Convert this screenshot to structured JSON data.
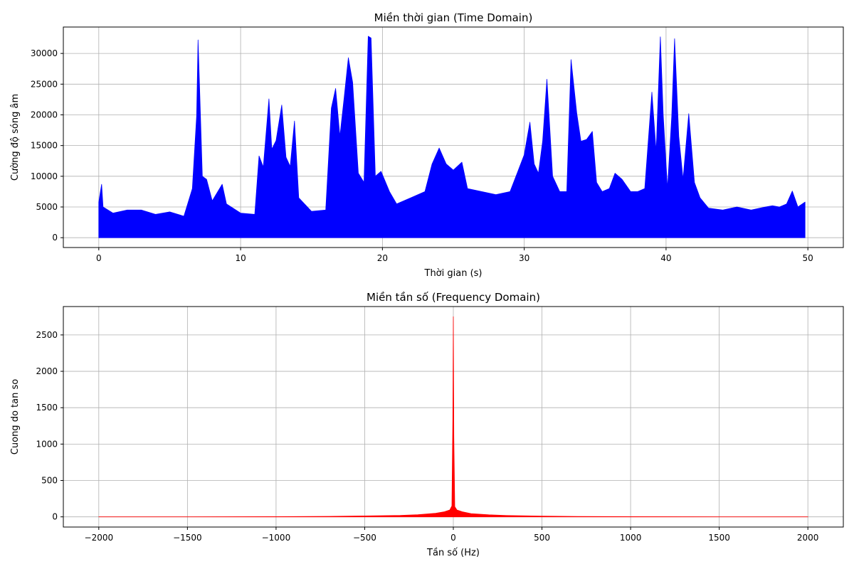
{
  "chart_data": [
    {
      "type": "line",
      "title": "Miền thời gian (Time Domain)",
      "xlabel": "Thời gian (s)",
      "ylabel": "Cường độ sóng âm",
      "xlim": [
        -2.5,
        52.5
      ],
      "ylim": [
        -1600,
        34300
      ],
      "xticks": [
        0,
        10,
        20,
        30,
        40,
        50
      ],
      "yticks": [
        0,
        5000,
        10000,
        15000,
        20000,
        25000,
        30000
      ],
      "grid": true,
      "series": [
        {
          "color": "#0000ff",
          "x": [
            0,
            0.2,
            0.3,
            1,
            2,
            3,
            4,
            5,
            6,
            6.6,
            6.9,
            7.0,
            7.1,
            7.3,
            7.6,
            8,
            8.7,
            9,
            10,
            11,
            11.3,
            11.6,
            12.0,
            12.2,
            12.5,
            12.9,
            13.2,
            13.5,
            13.8,
            14.1,
            15,
            16,
            16.4,
            16.7,
            17.0,
            17.3,
            17.6,
            17.9,
            18.3,
            18.7,
            19.0,
            19.2,
            19.5,
            19.9,
            20.5,
            21,
            22,
            23,
            23.5,
            24.0,
            24.5,
            25,
            25.6,
            26,
            27,
            28,
            29,
            29.5,
            30.0,
            30.4,
            30.7,
            31.0,
            31.3,
            31.6,
            32,
            32.5,
            33.0,
            33.3,
            33.7,
            34.0,
            34.4,
            34.8,
            35.1,
            35.5,
            36,
            36.4,
            36.9,
            37.5,
            38,
            38.5,
            39.0,
            39.3,
            39.6,
            39.8,
            40.1,
            40.4,
            40.6,
            40.9,
            41.2,
            41.6,
            42.0,
            42.4,
            43,
            44,
            45,
            46,
            47,
            47.5,
            48,
            48.5,
            48.9,
            49.3,
            49.8
          ],
          "y": [
            5800,
            8700,
            5000,
            4000,
            4500,
            4500,
            3800,
            4200,
            3500,
            8000,
            19800,
            32200,
            25000,
            10000,
            9500,
            6000,
            8700,
            5500,
            4000,
            3800,
            13300,
            11500,
            22600,
            14400,
            15800,
            21600,
            13100,
            11600,
            19000,
            6500,
            4300,
            4500,
            21100,
            24300,
            16500,
            22800,
            29300,
            25300,
            10500,
            9000,
            32800,
            32500,
            10000,
            10800,
            7500,
            5500,
            6500,
            7500,
            12000,
            14600,
            12000,
            11000,
            12300,
            8000,
            7500,
            7000,
            7500,
            10500,
            13500,
            18800,
            12000,
            10500,
            15700,
            25800,
            10000,
            7500,
            7500,
            29000,
            20300,
            15700,
            16000,
            17300,
            9000,
            7500,
            8000,
            10500,
            9500,
            7500,
            7500,
            8000,
            23700,
            14000,
            32700,
            20000,
            8000,
            19800,
            32400,
            16500,
            9500,
            20200,
            9000,
            6500,
            4800,
            4500,
            5000,
            4500,
            5000,
            5200,
            5000,
            5500,
            7600,
            5000,
            5800
          ]
        }
      ]
    },
    {
      "type": "line",
      "title": "Miền tần số (Frequency Domain)",
      "xlabel": "Tần số (Hz)",
      "ylabel": "Cuong do tan so",
      "xlim": [
        -2200,
        2200
      ],
      "ylim": [
        -140,
        2890
      ],
      "xticks": [
        -2000,
        -1500,
        -1000,
        -500,
        0,
        500,
        1000,
        1500,
        2000
      ],
      "yticks": [
        0,
        500,
        1000,
        1500,
        2000,
        2500
      ],
      "grid": true,
      "series": [
        {
          "color": "#ff0000",
          "x": [
            -2000,
            -1500,
            -1000,
            -700,
            -500,
            -300,
            -200,
            -100,
            -50,
            -20,
            -8,
            -3,
            0,
            3,
            8,
            20,
            50,
            100,
            200,
            300,
            500,
            700,
            1000,
            1500,
            2000
          ],
          "y": [
            0,
            1,
            3,
            7,
            12,
            20,
            30,
            50,
            70,
            95,
            150,
            1350,
            2750,
            1100,
            140,
            95,
            70,
            45,
            28,
            18,
            10,
            6,
            3,
            1,
            0
          ]
        }
      ]
    }
  ]
}
